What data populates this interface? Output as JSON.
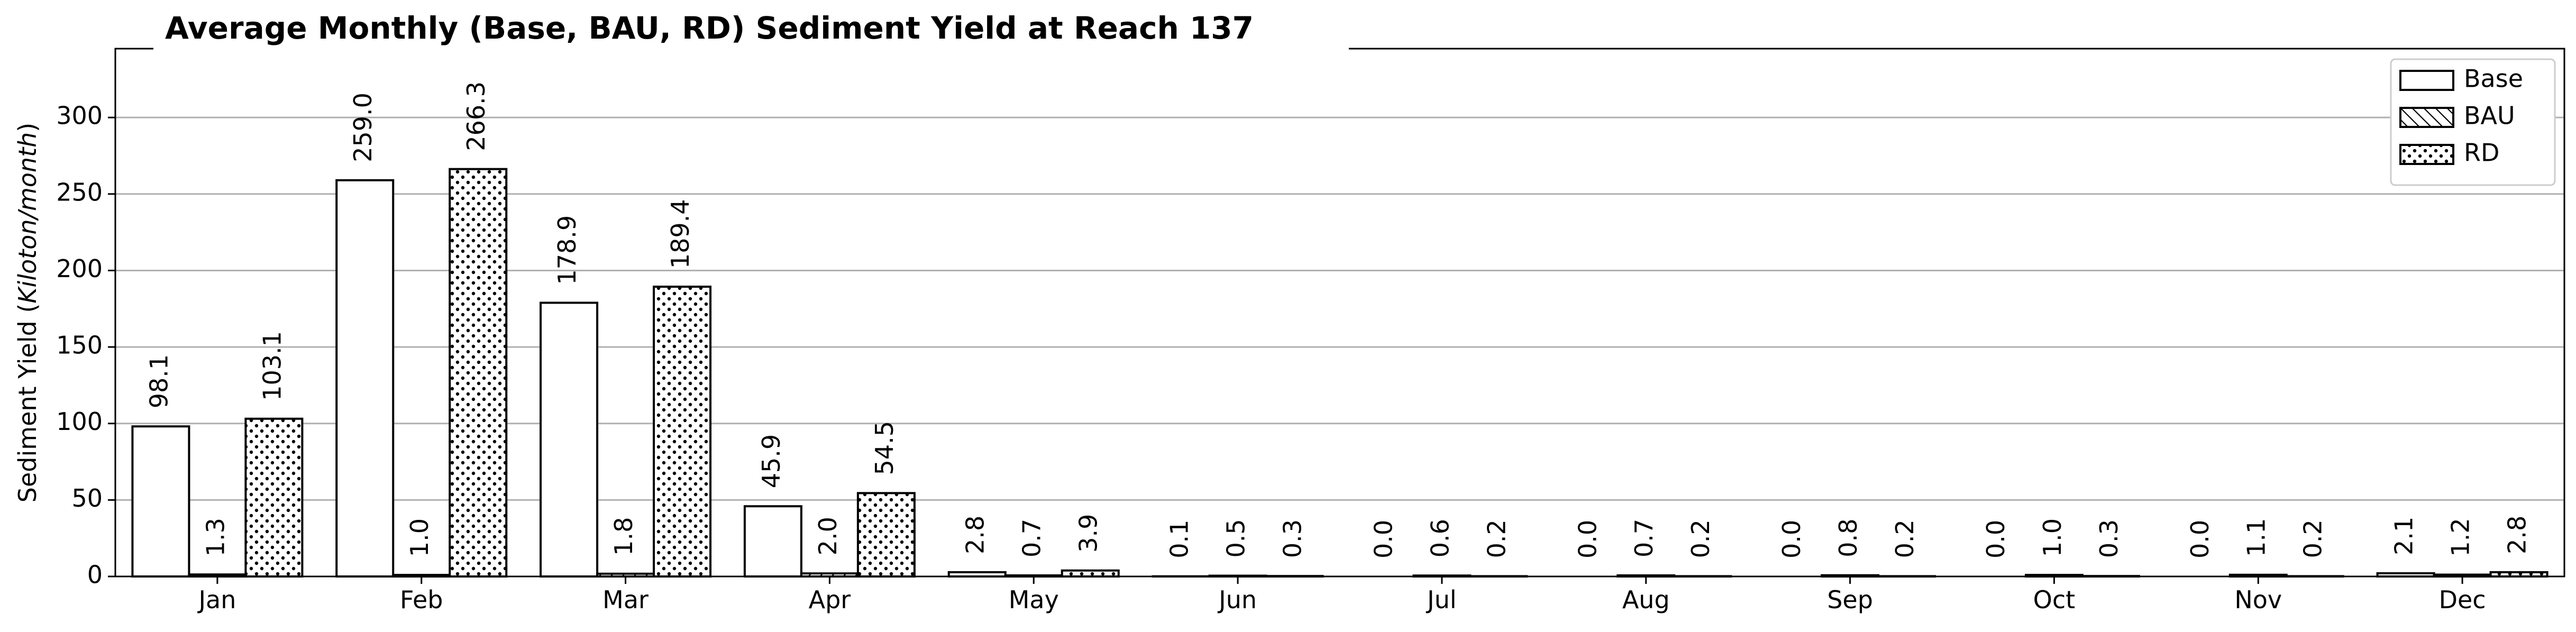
{
  "chart_data": {
    "type": "bar",
    "title": "Average Monthly (Base, BAU, RD) Sediment Yield at Reach 137",
    "xlabel": "",
    "ylabel_prefix": "Sediment Yield (",
    "ylabel_unit": "Kiloton/month",
    "ylabel_suffix": ")",
    "ylim": [
      0,
      345
    ],
    "yticks": [
      0,
      50,
      100,
      150,
      200,
      250,
      300
    ],
    "grid": "horizontal",
    "legend_position": "top-right",
    "categories": [
      "Jan",
      "Feb",
      "Mar",
      "Apr",
      "May",
      "Jun",
      "Jul",
      "Aug",
      "Sep",
      "Oct",
      "Nov",
      "Dec"
    ],
    "series": [
      {
        "name": "Base",
        "hatch": "none",
        "values": [
          98.1,
          259.0,
          178.9,
          45.9,
          2.8,
          0.1,
          0.0,
          0.0,
          0.0,
          0.0,
          0.0,
          2.1
        ],
        "labels": [
          "98.1",
          "259.0",
          "178.9",
          "45.9",
          "2.8",
          "0.1",
          "0.0",
          "0.0",
          "0.0",
          "0.0",
          "0.0",
          "2.1"
        ]
      },
      {
        "name": "BAU",
        "hatch": "diagonal",
        "values": [
          1.3,
          1.0,
          1.8,
          2.0,
          0.7,
          0.5,
          0.6,
          0.7,
          0.8,
          1.0,
          1.1,
          1.2
        ],
        "labels": [
          "1.3",
          "1.0",
          "1.8",
          "2.0",
          "0.7",
          "0.5",
          "0.6",
          "0.7",
          "0.8",
          "1.0",
          "1.1",
          "1.2"
        ]
      },
      {
        "name": "RD",
        "hatch": "dots",
        "values": [
          103.1,
          266.3,
          189.4,
          54.5,
          3.9,
          0.3,
          0.2,
          0.2,
          0.2,
          0.3,
          0.2,
          2.8
        ],
        "labels": [
          "103.1",
          "266.3",
          "189.4",
          "54.5",
          "3.9",
          "0.3",
          "0.2",
          "0.2",
          "0.2",
          "0.3",
          "0.2",
          "2.8"
        ]
      }
    ]
  }
}
